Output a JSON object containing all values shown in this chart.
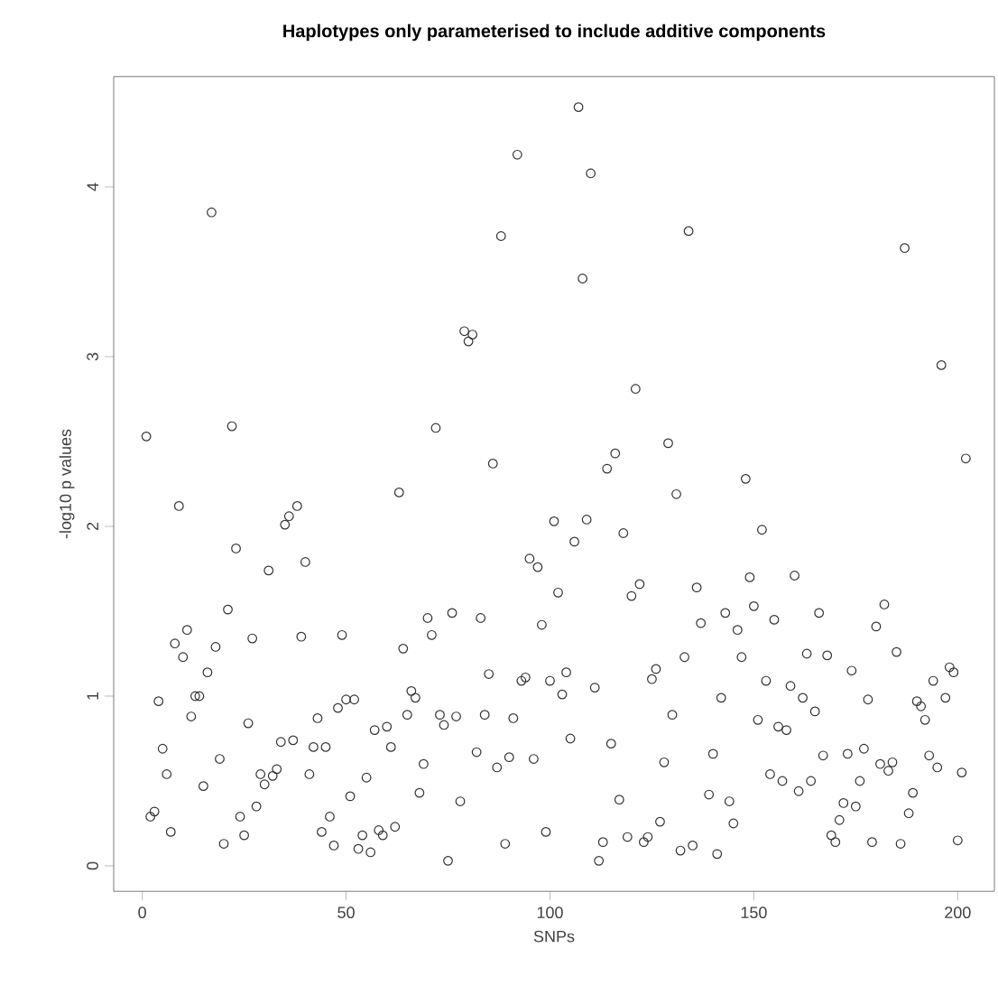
{
  "chart_data": {
    "type": "scatter",
    "title": "Haplotypes only parameterised to include additive components",
    "xlabel": "SNPs",
    "ylabel": "-log10 p values",
    "xlim": [
      -7,
      209
    ],
    "ylim": [
      -0.15,
      4.65
    ],
    "xticks": [
      0,
      50,
      100,
      150,
      200
    ],
    "yticks": [
      0,
      1,
      2,
      3,
      4
    ],
    "marker": "circle",
    "series": [
      {
        "color": "#333333",
        "x": [
          1,
          2,
          3,
          4,
          5,
          6,
          7,
          8,
          9,
          10,
          11,
          12,
          13,
          14,
          15,
          16,
          17,
          18,
          19,
          20,
          21,
          22,
          23,
          24,
          25,
          26,
          27,
          28,
          29,
          30,
          31,
          32,
          33,
          34,
          35,
          36,
          37,
          38,
          39,
          40,
          41,
          42,
          43,
          44,
          45,
          46,
          47,
          48,
          49,
          50,
          51,
          52,
          53,
          54,
          55,
          56,
          57,
          58,
          59,
          60,
          61,
          62,
          63,
          64,
          65,
          66,
          67,
          68,
          69,
          70,
          71,
          72,
          73,
          74,
          75,
          76,
          77,
          78,
          79,
          80,
          81,
          82,
          83,
          84,
          85,
          86,
          87,
          88,
          89,
          90,
          91,
          92,
          93,
          94,
          95,
          96,
          97,
          98,
          99,
          100,
          101,
          102,
          103,
          104,
          105,
          106,
          107,
          108,
          109,
          110,
          111,
          112,
          113,
          114,
          115,
          116,
          117,
          118,
          119,
          120,
          121,
          122,
          123,
          124,
          125,
          126,
          127,
          128,
          129,
          130,
          131,
          132,
          133,
          134,
          135,
          136,
          137,
          139,
          140,
          141,
          142,
          143,
          144,
          145,
          146,
          147,
          148,
          149,
          150,
          151,
          152,
          153,
          154,
          155,
          156,
          157,
          158,
          159,
          160,
          161,
          162,
          163,
          164,
          165,
          166,
          167,
          168,
          169,
          170,
          171,
          172,
          173,
          174,
          175,
          176,
          177,
          178,
          179,
          180,
          181,
          182,
          183,
          184,
          185,
          186,
          187,
          188,
          189,
          190,
          191,
          192,
          193,
          194,
          195,
          196,
          197,
          198,
          199,
          200,
          201,
          202
        ],
        "values": [
          2.53,
          0.29,
          0.32,
          0.97,
          0.69,
          0.54,
          0.2,
          1.31,
          2.12,
          1.23,
          1.39,
          0.88,
          1.0,
          1.0,
          0.47,
          1.14,
          3.85,
          1.29,
          0.63,
          0.13,
          1.51,
          2.59,
          1.87,
          0.29,
          0.18,
          0.84,
          1.34,
          0.35,
          0.54,
          0.48,
          1.74,
          0.53,
          0.57,
          0.73,
          2.01,
          2.06,
          0.74,
          2.12,
          1.35,
          1.79,
          0.54,
          0.7,
          0.87,
          0.2,
          0.7,
          0.29,
          0.12,
          0.93,
          1.36,
          0.98,
          0.41,
          0.98,
          0.1,
          0.18,
          0.52,
          0.08,
          0.8,
          0.21,
          0.18,
          0.82,
          0.7,
          0.23,
          2.2,
          1.28,
          0.89,
          1.03,
          0.99,
          0.43,
          0.6,
          1.46,
          1.36,
          2.58,
          0.89,
          0.83,
          0.03,
          1.49,
          0.88,
          0.38,
          3.15,
          3.09,
          3.13,
          0.67,
          1.46,
          0.89,
          1.13,
          2.37,
          0.58,
          3.71,
          0.13,
          0.64,
          0.87,
          4.19,
          1.09,
          1.11,
          1.81,
          0.63,
          1.76,
          1.42,
          0.2,
          1.09,
          2.03,
          1.61,
          1.01,
          1.14,
          0.75,
          1.91,
          4.47,
          3.46,
          2.04,
          4.08,
          1.05,
          0.03,
          0.14,
          2.34,
          0.72,
          2.43,
          0.39,
          1.96,
          0.17,
          1.59,
          2.81,
          1.66,
          0.14,
          0.17,
          1.1,
          1.16,
          0.26,
          0.61,
          2.49,
          0.89,
          2.19,
          0.09,
          1.23,
          3.74,
          0.12,
          1.64,
          1.43,
          0.42,
          0.66,
          0.07,
          0.99,
          1.49,
          0.38,
          0.25,
          1.39,
          1.23,
          2.28,
          1.7,
          1.53,
          0.86,
          1.98,
          1.09,
          0.54,
          1.45,
          0.82,
          0.5,
          0.8,
          1.06,
          1.71,
          0.44,
          0.99,
          1.25,
          0.5,
          0.91,
          1.49,
          0.65,
          1.24,
          0.18,
          0.14,
          0.27,
          0.37,
          0.66,
          1.15,
          0.35,
          0.5,
          0.69,
          0.98,
          0.14,
          1.41,
          0.6,
          1.54,
          0.56,
          0.61,
          1.26,
          0.13,
          3.64,
          0.31,
          0.43,
          0.97,
          0.94,
          0.86,
          0.65,
          1.09,
          0.58,
          2.95,
          0.99,
          1.17,
          1.14,
          0.15,
          0.55,
          2.4
        ]
      }
    ]
  }
}
